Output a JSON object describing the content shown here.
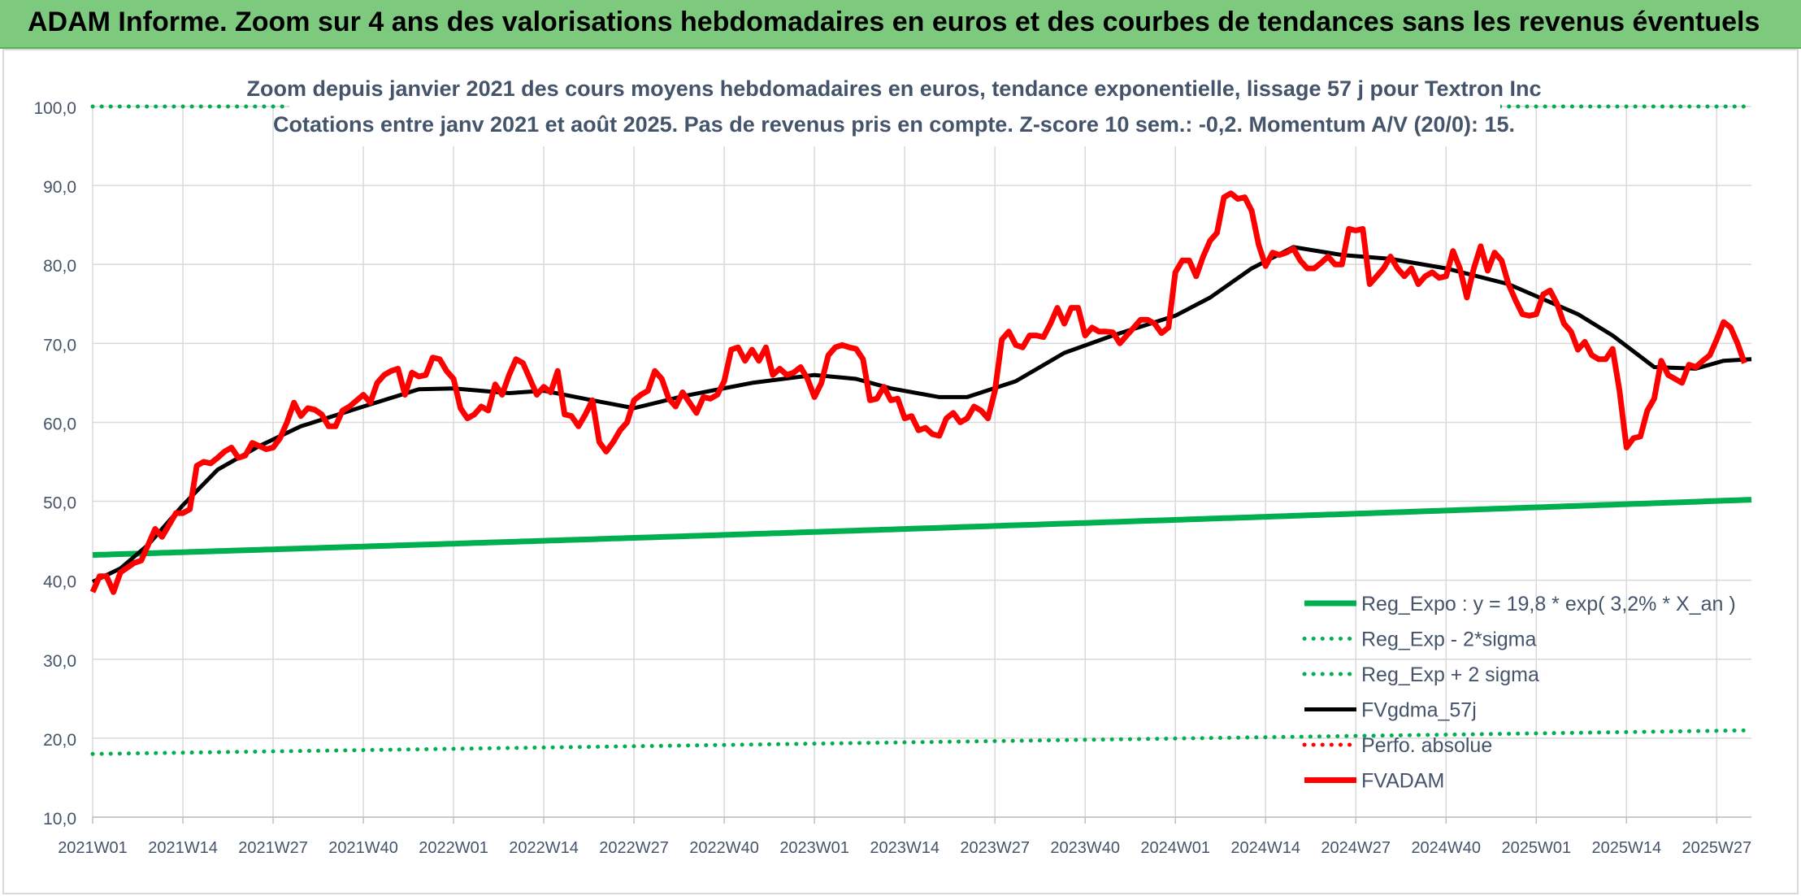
{
  "banner": {
    "title": "ADAM Informe. Zoom sur 4 ans des valorisations hebdomadaires en euros et des courbes de tendances sans les revenus éventuels"
  },
  "chart_data": {
    "type": "line",
    "title": "Zoom depuis janvier 2021 des cours moyens hebdomadaires en euros, tendance exponentielle, lissage 57 j pour Textron Inc",
    "subtitle": "Cotations entre janv 2021 et août 2025. Pas de revenus pris en compte. Z-score 10 sem.: -0,2. Momentum A/V (20/0): 15.",
    "xlabel": "",
    "ylabel": "",
    "ylim": [
      10,
      100
    ],
    "yticks": [
      "10,0",
      "20,0",
      "30,0",
      "40,0",
      "50,0",
      "60,0",
      "70,0",
      "80,0",
      "90,0",
      "100,0"
    ],
    "xticks": [
      "2021W01",
      "2021W14",
      "2021W27",
      "2021W40",
      "2022W01",
      "2022W14",
      "2022W27",
      "2022W40",
      "2023W01",
      "2023W14",
      "2023W27",
      "2023W40",
      "2024W01",
      "2024W14",
      "2024W27",
      "2024W40",
      "2025W01",
      "2025W14",
      "2025W27"
    ],
    "xtick_step_weeks": 13,
    "grid": true,
    "legend_position": "bottom-right",
    "series": [
      {
        "name": "Reg_Expo : y = 19,8 * exp( 3,2% *  X_an )",
        "color": "#00b050",
        "style": "solid",
        "keys": [
          [
            0,
            43.2
          ],
          [
            239,
            50.2
          ]
        ]
      },
      {
        "name": "Reg_Exp - 2*sigma",
        "color": "#00b050",
        "style": "dotted",
        "keys": [
          [
            0,
            18.0
          ],
          [
            239,
            21.0
          ]
        ]
      },
      {
        "name": "Reg_Exp + 2 sigma",
        "color": "#00b050",
        "style": "dotted",
        "keys": [
          [
            0,
            100.0
          ],
          [
            239,
            100.0
          ]
        ]
      },
      {
        "name": "FVgdma_57j",
        "color": "#000000",
        "style": "solid",
        "keys": [
          [
            0,
            39.8
          ],
          [
            4,
            41.5
          ],
          [
            8,
            44.5
          ],
          [
            13,
            49.5
          ],
          [
            18,
            54
          ],
          [
            24,
            57
          ],
          [
            30,
            59.5
          ],
          [
            39,
            62
          ],
          [
            47,
            64.2
          ],
          [
            52,
            64.3
          ],
          [
            60,
            63.7
          ],
          [
            65,
            64
          ],
          [
            72,
            62.8
          ],
          [
            78,
            61.8
          ],
          [
            85,
            63.3
          ],
          [
            95,
            65
          ],
          [
            104,
            66
          ],
          [
            110,
            65.5
          ],
          [
            115,
            64.3
          ],
          [
            122,
            63.2
          ],
          [
            126,
            63.2
          ],
          [
            133,
            65.2
          ],
          [
            140,
            68.8
          ],
          [
            147,
            71
          ],
          [
            156,
            73.5
          ],
          [
            161,
            75.8
          ],
          [
            167,
            79.5
          ],
          [
            173,
            82.2
          ],
          [
            180,
            81.2
          ],
          [
            187,
            80.7
          ],
          [
            195,
            79.5
          ],
          [
            204,
            77.5
          ],
          [
            214,
            73.7
          ],
          [
            219,
            71
          ],
          [
            225,
            67
          ],
          [
            231,
            66.8
          ],
          [
            235,
            67.8
          ],
          [
            239,
            68
          ]
        ]
      },
      {
        "name": "Perfo. absolue",
        "color": "#ff0000",
        "style": "dotted",
        "keys": []
      },
      {
        "name": "FVADAM",
        "color": "#ff0000",
        "style": "solid",
        "keys": [
          [
            0,
            38.5
          ],
          [
            1,
            40.5
          ],
          [
            2,
            40.5
          ],
          [
            3,
            38.5
          ],
          [
            4,
            41
          ],
          [
            6,
            42.2
          ],
          [
            7,
            42.5
          ],
          [
            9,
            46.5
          ],
          [
            10,
            45.5
          ],
          [
            12,
            48.5
          ],
          [
            13,
            48.5
          ],
          [
            14,
            49
          ],
          [
            15,
            54.5
          ],
          [
            16,
            55
          ],
          [
            17,
            54.8
          ],
          [
            18,
            55.5
          ],
          [
            19,
            56.3
          ],
          [
            20,
            56.8
          ],
          [
            21,
            55.5
          ],
          [
            22,
            55.8
          ],
          [
            23,
            57.4
          ],
          [
            24,
            57
          ],
          [
            25,
            56.6
          ],
          [
            26,
            56.8
          ],
          [
            27,
            58
          ],
          [
            28,
            60
          ],
          [
            29,
            62.5
          ],
          [
            30,
            60.8
          ],
          [
            31,
            61.8
          ],
          [
            32,
            61.6
          ],
          [
            33,
            61
          ],
          [
            34,
            59.5
          ],
          [
            35,
            59.5
          ],
          [
            36,
            61.5
          ],
          [
            37,
            62
          ],
          [
            39,
            63.5
          ],
          [
            40,
            62.5
          ],
          [
            41,
            65
          ],
          [
            42,
            66
          ],
          [
            43,
            66.5
          ],
          [
            44,
            66.8
          ],
          [
            45,
            63.5
          ],
          [
            46,
            66.3
          ],
          [
            47,
            65.8
          ],
          [
            48,
            66
          ],
          [
            49,
            68.2
          ],
          [
            50,
            68
          ],
          [
            51,
            66.5
          ],
          [
            52,
            65.5
          ],
          [
            53,
            61.8
          ],
          [
            54,
            60.5
          ],
          [
            55,
            61
          ],
          [
            56,
            62
          ],
          [
            57,
            61.5
          ],
          [
            58,
            64.8
          ],
          [
            59,
            63.5
          ],
          [
            60,
            66
          ],
          [
            61,
            68
          ],
          [
            62,
            67.5
          ],
          [
            63,
            65.5
          ],
          [
            64,
            63.5
          ],
          [
            65,
            64.5
          ],
          [
            66,
            63.8
          ],
          [
            67,
            66.5
          ],
          [
            68,
            61
          ],
          [
            69,
            60.8
          ],
          [
            70,
            59.5
          ],
          [
            71,
            61
          ],
          [
            72,
            62.8
          ],
          [
            73,
            57.5
          ],
          [
            74,
            56.3
          ],
          [
            75,
            57.5
          ],
          [
            76,
            59
          ],
          [
            77,
            60
          ],
          [
            78,
            62.8
          ],
          [
            79,
            63.5
          ],
          [
            80,
            64
          ],
          [
            81,
            66.5
          ],
          [
            82,
            65.5
          ],
          [
            83,
            63
          ],
          [
            84,
            62
          ],
          [
            85,
            63.8
          ],
          [
            86,
            62.5
          ],
          [
            87,
            61.2
          ],
          [
            88,
            63.2
          ],
          [
            89,
            63
          ],
          [
            90,
            63.5
          ],
          [
            91,
            65.2
          ],
          [
            92,
            69.2
          ],
          [
            93,
            69.5
          ],
          [
            94,
            67.8
          ],
          [
            95,
            69.2
          ],
          [
            96,
            67.8
          ],
          [
            97,
            69.5
          ],
          [
            98,
            66
          ],
          [
            99,
            66.8
          ],
          [
            100,
            66
          ],
          [
            101,
            66.3
          ],
          [
            102,
            67
          ],
          [
            103,
            65.5
          ],
          [
            104,
            63.2
          ],
          [
            105,
            65
          ],
          [
            106,
            68.5
          ],
          [
            107,
            69.5
          ],
          [
            108,
            69.8
          ],
          [
            109,
            69.5
          ],
          [
            110,
            69.3
          ],
          [
            111,
            68
          ],
          [
            112,
            62.8
          ],
          [
            113,
            63
          ],
          [
            114,
            64.5
          ],
          [
            115,
            62.8
          ],
          [
            116,
            63
          ],
          [
            117,
            60.5
          ],
          [
            118,
            60.8
          ],
          [
            119,
            59
          ],
          [
            120,
            59.3
          ],
          [
            121,
            58.5
          ],
          [
            122,
            58.3
          ],
          [
            123,
            60.5
          ],
          [
            124,
            61.2
          ],
          [
            125,
            60
          ],
          [
            126,
            60.5
          ],
          [
            127,
            62
          ],
          [
            128,
            61.5
          ],
          [
            129,
            60.5
          ],
          [
            130,
            64
          ],
          [
            131,
            70.5
          ],
          [
            132,
            71.5
          ],
          [
            133,
            69.8
          ],
          [
            134,
            69.5
          ],
          [
            135,
            71
          ],
          [
            136,
            71
          ],
          [
            137,
            70.8
          ],
          [
            138,
            72.5
          ],
          [
            139,
            74.5
          ],
          [
            140,
            72.5
          ],
          [
            141,
            74.5
          ],
          [
            142,
            74.5
          ],
          [
            143,
            71
          ],
          [
            144,
            72
          ],
          [
            145,
            71.5
          ],
          [
            146,
            71.5
          ],
          [
            147,
            71.4
          ],
          [
            148,
            70
          ],
          [
            149,
            71
          ],
          [
            150,
            72
          ],
          [
            151,
            73
          ],
          [
            152,
            73
          ],
          [
            153,
            72.5
          ],
          [
            154,
            71.3
          ],
          [
            155,
            72
          ],
          [
            156,
            79
          ],
          [
            157,
            80.5
          ],
          [
            158,
            80.5
          ],
          [
            159,
            78.5
          ],
          [
            160,
            81
          ],
          [
            161,
            83
          ],
          [
            162,
            84
          ],
          [
            163,
            88.5
          ],
          [
            164,
            89
          ],
          [
            165,
            88.3
          ],
          [
            166,
            88.5
          ],
          [
            167,
            86.8
          ],
          [
            168,
            82.5
          ],
          [
            169,
            79.8
          ],
          [
            170,
            81.5
          ],
          [
            171,
            81.2
          ],
          [
            172,
            81.5
          ],
          [
            173,
            82
          ],
          [
            174,
            80.5
          ],
          [
            175,
            79.5
          ],
          [
            176,
            79.5
          ],
          [
            177,
            80.2
          ],
          [
            178,
            81
          ],
          [
            179,
            80
          ],
          [
            180,
            80
          ],
          [
            181,
            84.5
          ],
          [
            182,
            84.3
          ],
          [
            183,
            84.5
          ],
          [
            184,
            77.5
          ],
          [
            185,
            78.5
          ],
          [
            186,
            79.5
          ],
          [
            187,
            81
          ],
          [
            188,
            79.5
          ],
          [
            189,
            78.5
          ],
          [
            190,
            79.5
          ],
          [
            191,
            77.5
          ],
          [
            192,
            78.5
          ],
          [
            193,
            79
          ],
          [
            194,
            78.3
          ],
          [
            195,
            78.5
          ],
          [
            196,
            81.7
          ],
          [
            197,
            79.5
          ],
          [
            198,
            75.8
          ],
          [
            199,
            79.5
          ],
          [
            200,
            82.3
          ],
          [
            201,
            79.2
          ],
          [
            202,
            81.5
          ],
          [
            203,
            80.5
          ],
          [
            204,
            77.5
          ],
          [
            205,
            75.5
          ],
          [
            206,
            73.7
          ],
          [
            207,
            73.5
          ],
          [
            208,
            73.7
          ],
          [
            209,
            76.2
          ],
          [
            210,
            76.7
          ],
          [
            211,
            75
          ],
          [
            212,
            72.5
          ],
          [
            213,
            71.5
          ],
          [
            214,
            69.2
          ],
          [
            215,
            70.2
          ],
          [
            216,
            68.5
          ],
          [
            217,
            68
          ],
          [
            218,
            68
          ],
          [
            219,
            69.3
          ],
          [
            220,
            64
          ],
          [
            221,
            56.8
          ],
          [
            222,
            58
          ],
          [
            223,
            58.2
          ],
          [
            224,
            61.5
          ],
          [
            225,
            63
          ],
          [
            226,
            67.8
          ],
          [
            227,
            66
          ],
          [
            228,
            65.5
          ],
          [
            229,
            65
          ],
          [
            230,
            67.3
          ],
          [
            231,
            67
          ],
          [
            232,
            67.8
          ],
          [
            233,
            68.5
          ],
          [
            234,
            70.5
          ],
          [
            235,
            72.7
          ],
          [
            236,
            72
          ],
          [
            237,
            70
          ],
          [
            238,
            67.5
          ]
        ]
      }
    ]
  }
}
